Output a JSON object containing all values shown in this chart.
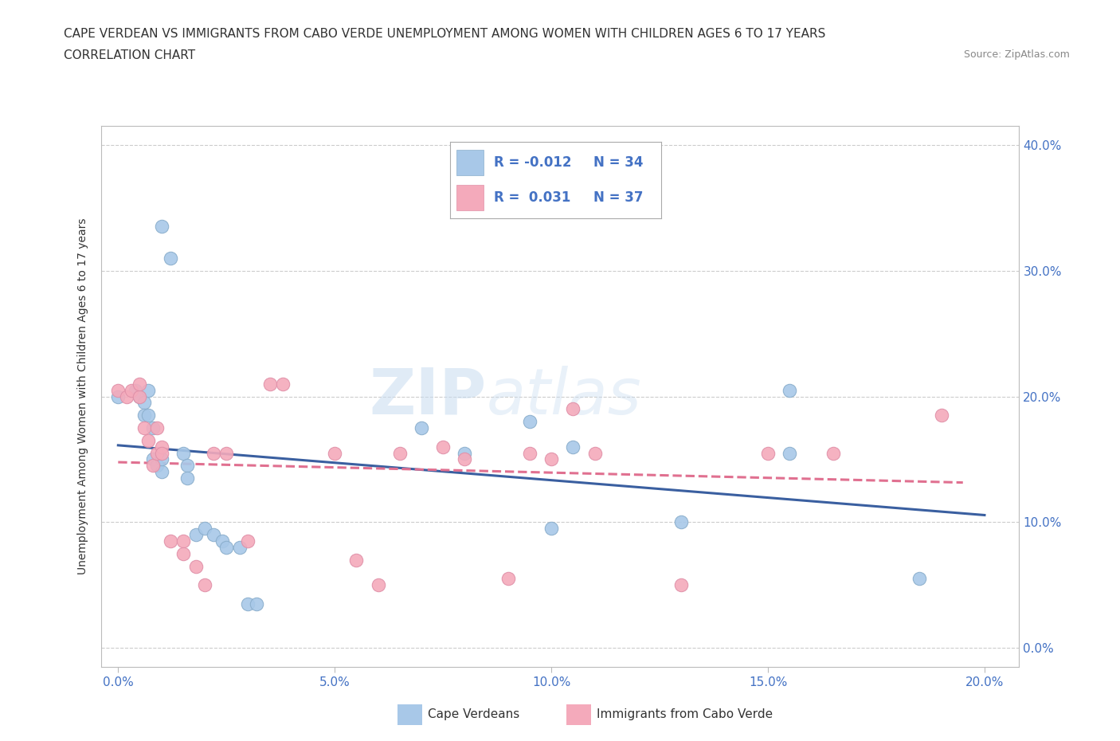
{
  "title_line1": "CAPE VERDEAN VS IMMIGRANTS FROM CABO VERDE UNEMPLOYMENT AMONG WOMEN WITH CHILDREN AGES 6 TO 17 YEARS",
  "title_line2": "CORRELATION CHART",
  "source": "Source: ZipAtlas.com",
  "xlabel_ticks": [
    "0.0%",
    "5.0%",
    "10.0%",
    "15.0%",
    "20.0%"
  ],
  "xlabel_vals": [
    0.0,
    0.05,
    0.1,
    0.15,
    0.2
  ],
  "ylabel_ticks": [
    "0.0%",
    "10.0%",
    "20.0%",
    "30.0%",
    "40.0%"
  ],
  "ylabel_vals": [
    0.0,
    0.1,
    0.2,
    0.3,
    0.4
  ],
  "xlim": [
    -0.004,
    0.208
  ],
  "ylim": [
    -0.015,
    0.415
  ],
  "watermark_zip": "ZIP",
  "watermark_atlas": "atlas",
  "legend_R_blue": "-0.012",
  "legend_N_blue": "34",
  "legend_R_pink": "0.031",
  "legend_N_pink": "37",
  "blue_color": "#A8C8E8",
  "pink_color": "#F4AABB",
  "blue_line_color": "#3A5FA0",
  "pink_line_color": "#E07090",
  "blue_scatter": [
    [
      0.01,
      0.335
    ],
    [
      0.012,
      0.31
    ],
    [
      0.0,
      0.2
    ],
    [
      0.004,
      0.205
    ],
    [
      0.005,
      0.2
    ],
    [
      0.006,
      0.195
    ],
    [
      0.006,
      0.185
    ],
    [
      0.007,
      0.205
    ],
    [
      0.007,
      0.185
    ],
    [
      0.008,
      0.175
    ],
    [
      0.008,
      0.15
    ],
    [
      0.009,
      0.145
    ],
    [
      0.01,
      0.14
    ],
    [
      0.01,
      0.15
    ],
    [
      0.015,
      0.155
    ],
    [
      0.016,
      0.145
    ],
    [
      0.016,
      0.135
    ],
    [
      0.018,
      0.09
    ],
    [
      0.02,
      0.095
    ],
    [
      0.022,
      0.09
    ],
    [
      0.024,
      0.085
    ],
    [
      0.025,
      0.08
    ],
    [
      0.028,
      0.08
    ],
    [
      0.03,
      0.035
    ],
    [
      0.032,
      0.035
    ],
    [
      0.07,
      0.175
    ],
    [
      0.08,
      0.155
    ],
    [
      0.095,
      0.18
    ],
    [
      0.1,
      0.095
    ],
    [
      0.105,
      0.16
    ],
    [
      0.13,
      0.1
    ],
    [
      0.155,
      0.205
    ],
    [
      0.155,
      0.155
    ],
    [
      0.185,
      0.055
    ]
  ],
  "pink_scatter": [
    [
      0.0,
      0.205
    ],
    [
      0.002,
      0.2
    ],
    [
      0.003,
      0.205
    ],
    [
      0.005,
      0.2
    ],
    [
      0.005,
      0.21
    ],
    [
      0.006,
      0.175
    ],
    [
      0.007,
      0.165
    ],
    [
      0.008,
      0.145
    ],
    [
      0.009,
      0.155
    ],
    [
      0.009,
      0.175
    ],
    [
      0.01,
      0.16
    ],
    [
      0.01,
      0.155
    ],
    [
      0.012,
      0.085
    ],
    [
      0.015,
      0.085
    ],
    [
      0.015,
      0.075
    ],
    [
      0.018,
      0.065
    ],
    [
      0.02,
      0.05
    ],
    [
      0.022,
      0.155
    ],
    [
      0.025,
      0.155
    ],
    [
      0.03,
      0.085
    ],
    [
      0.035,
      0.21
    ],
    [
      0.038,
      0.21
    ],
    [
      0.05,
      0.155
    ],
    [
      0.055,
      0.07
    ],
    [
      0.06,
      0.05
    ],
    [
      0.065,
      0.155
    ],
    [
      0.075,
      0.16
    ],
    [
      0.08,
      0.15
    ],
    [
      0.09,
      0.055
    ],
    [
      0.095,
      0.155
    ],
    [
      0.1,
      0.15
    ],
    [
      0.105,
      0.19
    ],
    [
      0.11,
      0.155
    ],
    [
      0.13,
      0.05
    ],
    [
      0.15,
      0.155
    ],
    [
      0.165,
      0.155
    ],
    [
      0.19,
      0.185
    ]
  ]
}
